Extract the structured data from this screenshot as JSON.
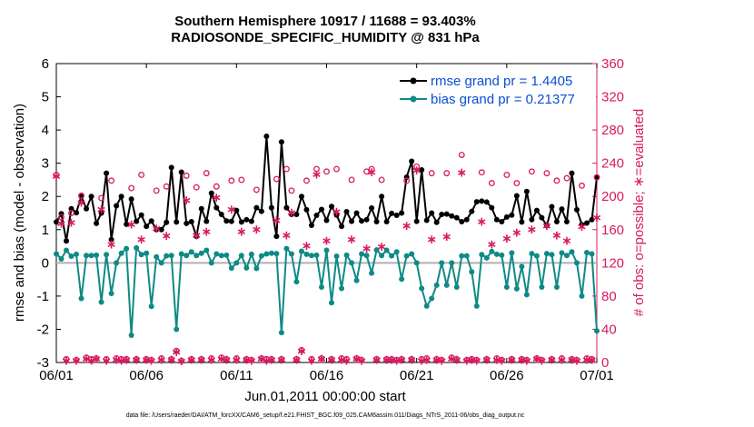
{
  "chart_data": {
    "type": "line",
    "title": "Southern Hemisphere 10917 / 11688 = 93.403%",
    "subtitle": "RADIOSONDE_SPECIFIC_HUMIDITY @ 831 hPa",
    "xlabel": "Jun.01,2011 00:00:00 start",
    "ylabel": "rmse and bias (model - observation)",
    "y2label": "# of obs: o=possible; ∗=evaluated",
    "footnote": "data file: /Users/raeder/DAI/ATM_forcXX/CAM6_setup/f.e21.FHIST_BGC.f09_025.CAM6assim.011/Diags_NTrS_2011-06/obs_diag_output.nc",
    "xlim": [
      0,
      30
    ],
    "ylim": [
      -3,
      6
    ],
    "y2lim": [
      0,
      360
    ],
    "x_ticks": [
      0,
      5,
      10,
      15,
      20,
      25,
      30
    ],
    "x_tick_labels": [
      "06/01",
      "06/06",
      "06/11",
      "06/16",
      "06/21",
      "06/26",
      "07/01"
    ],
    "y_ticks": [
      -3,
      -2,
      -1,
      0,
      1,
      2,
      3,
      4,
      5,
      6
    ],
    "y_tick_labels": [
      "-3",
      "-2",
      "-1",
      "0",
      "1",
      "2",
      "3",
      "4",
      "5",
      "6"
    ],
    "y2_ticks": [
      0,
      40,
      80,
      120,
      160,
      200,
      240,
      280,
      320,
      360
    ],
    "y2_tick_labels": [
      "0",
      "40",
      "80",
      "120",
      "160",
      "200",
      "240",
      "280",
      "320",
      "360"
    ],
    "zero_line": 0,
    "colors": {
      "rmse": "#000000",
      "bias": "#0e8a86",
      "obs": "#d81b60",
      "axis2": "#d81b60",
      "legend_text": "#0a4fd6"
    },
    "series": [
      {
        "name": "rmse grand pr = 1.4405",
        "values": [
          1.23,
          1.48,
          0.66,
          1.63,
          1.51,
          2.0,
          1.63,
          2.0,
          1.19,
          1.5,
          2.7,
          0.7,
          1.72,
          2.0,
          1.16,
          1.92,
          1.25,
          1.44,
          1.1,
          1.26,
          1.0,
          1.0,
          1.22,
          2.87,
          1.23,
          2.73,
          1.19,
          1.24,
          0.8,
          1.63,
          1.25,
          2.1,
          1.66,
          1.46,
          1.26,
          1.25,
          1.58,
          1.23,
          1.3,
          1.25,
          1.66,
          1.55,
          3.81,
          1.66,
          0.8,
          3.64,
          1.66,
          1.46,
          1.46,
          2.0,
          1.6,
          1.13,
          1.43,
          1.61,
          1.28,
          1.7,
          1.44,
          1.1,
          1.54,
          1.25,
          1.5,
          1.26,
          1.3,
          1.65,
          1.24,
          2.0,
          1.24,
          1.49,
          1.43,
          1.5,
          2.58,
          3.06,
          1.25,
          2.8,
          1.28,
          1.5,
          1.22,
          1.46,
          1.47,
          1.41,
          1.36,
          1.24,
          1.3,
          1.55,
          1.84,
          1.86,
          1.83,
          1.66,
          1.3,
          1.24,
          1.38,
          1.44,
          2.02,
          1.23,
          2.15,
          1.3,
          1.58,
          1.36,
          1.12,
          1.69,
          1.24,
          1.62,
          1.24,
          2.7,
          1.6,
          1.15,
          1.2,
          1.3,
          2.58
        ]
      },
      {
        "name": "bias grand pr = 0.21377",
        "values": [
          0.27,
          0.12,
          0.38,
          0.2,
          0.26,
          -1.07,
          0.22,
          0.22,
          0.23,
          -1.18,
          0.25,
          -0.92,
          0.0,
          0.29,
          0.43,
          -2.18,
          0.45,
          0.25,
          0.29,
          -1.31,
          0.18,
          0.0,
          0.21,
          0.22,
          -2.0,
          0.27,
          0.22,
          0.33,
          0.22,
          0.29,
          0.38,
          0.0,
          0.27,
          0.22,
          0.23,
          -0.16,
          0.0,
          0.22,
          -0.15,
          0.26,
          -0.17,
          0.21,
          0.27,
          0.29,
          0.28,
          -2.1,
          0.43,
          0.27,
          -0.57,
          0.35,
          0.26,
          0.22,
          0.23,
          -0.73,
          0.38,
          -1.2,
          0.2,
          -0.77,
          0.23,
          0.0,
          -0.53,
          0.27,
          0.22,
          -0.31,
          0.39,
          0.22,
          0.38,
          0.21,
          0.33,
          -0.49,
          0.21,
          0.27,
          0.0,
          -0.77,
          -1.3,
          -1.07,
          -0.67,
          0.0,
          -0.67,
          0.0,
          -0.73,
          0.21,
          0.21,
          -0.27,
          -1.3,
          0.25,
          0.15,
          0.34,
          0.26,
          0.23,
          -0.73,
          0.3,
          -0.78,
          -0.11,
          -0.96,
          0.28,
          0.21,
          -0.73,
          0.28,
          0.25,
          -0.73,
          0.3,
          0.22,
          0.33,
          0.0,
          -1.0,
          0.31,
          0.27,
          -2.05
        ]
      },
      {
        "name": "possible",
        "values": [
          226,
          175,
          4,
          180,
          3,
          201,
          6,
          4,
          5,
          198,
          4,
          219,
          5,
          4,
          4,
          210,
          4,
          226,
          4,
          3,
          207,
          5,
          212,
          4,
          14,
          2,
          225,
          4,
          211,
          4,
          228,
          5,
          212,
          6,
          4,
          219,
          5,
          220,
          4,
          3,
          208,
          5,
          4,
          4,
          221,
          4,
          233,
          207,
          4,
          15,
          219,
          4,
          233,
          5,
          230,
          4,
          233,
          5,
          4,
          220,
          5,
          3,
          230,
          233,
          4,
          220,
          4,
          4,
          3,
          4,
          219,
          4,
          236,
          4,
          5,
          228,
          4,
          3,
          228,
          6,
          4,
          250,
          3,
          4,
          3,
          229,
          4,
          216,
          5,
          3,
          226,
          4,
          216,
          4,
          3,
          230,
          5,
          3,
          228,
          4,
          219,
          5,
          222,
          4,
          3,
          213,
          5,
          4,
          223
        ]
      },
      {
        "name": "evaluated",
        "values": [
          225,
          168,
          3,
          169,
          3,
          193,
          5,
          3,
          5,
          185,
          3,
          143,
          4,
          3,
          4,
          167,
          4,
          149,
          4,
          3,
          162,
          4,
          153,
          4,
          13,
          2,
          196,
          4,
          154,
          4,
          158,
          4,
          199,
          5,
          4,
          185,
          4,
          158,
          4,
          3,
          161,
          5,
          3,
          4,
          172,
          4,
          154,
          181,
          4,
          14,
          141,
          3,
          227,
          5,
          147,
          4,
          182,
          4,
          3,
          149,
          5,
          3,
          138,
          230,
          4,
          140,
          4,
          4,
          3,
          4,
          165,
          4,
          232,
          3,
          4,
          149,
          4,
          3,
          152,
          5,
          4,
          229,
          3,
          4,
          3,
          170,
          4,
          143,
          4,
          3,
          150,
          4,
          157,
          4,
          3,
          161,
          5,
          3,
          165,
          4,
          154,
          4,
          147,
          4,
          3,
          164,
          4,
          4,
          175
        ]
      }
    ]
  }
}
